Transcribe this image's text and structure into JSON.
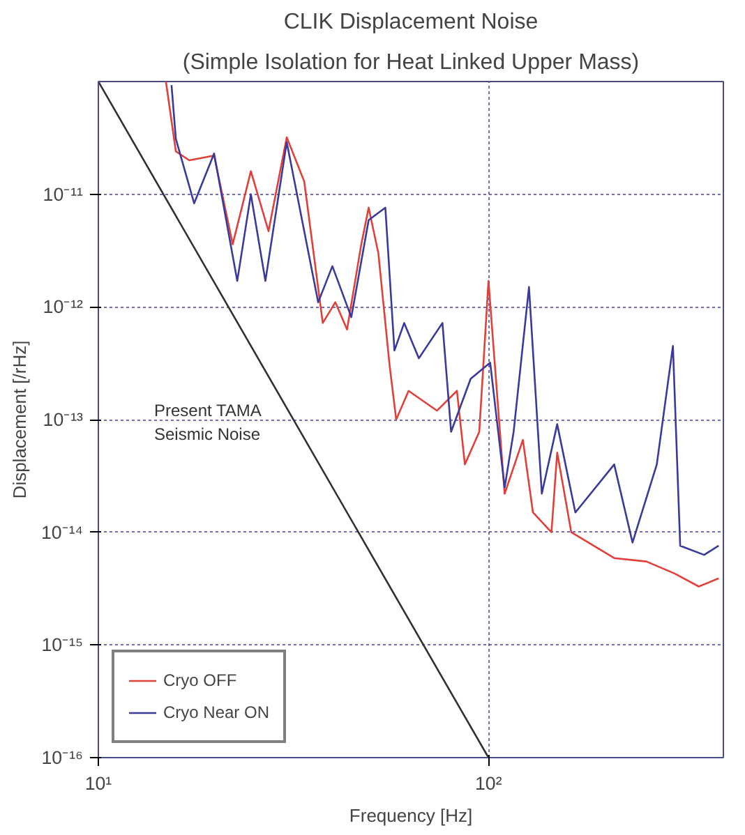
{
  "chart_data": {
    "type": "line",
    "title": "CLIK Displacement Noise",
    "subtitle": "(Simple Isolation for Heat Linked Upper Mass)",
    "xlabel": "Frequency [Hz]",
    "ylabel": "Displacement [/rHz]",
    "log": "xy",
    "grid": true,
    "legend": "bottom left",
    "line_style": "solid",
    "xlim": [
      10,
      400
    ],
    "xticks": [
      {
        "value": 10,
        "label": "10¹"
      },
      {
        "value": 100,
        "label": "10²"
      }
    ],
    "ylim": [
      1e-16,
      1e-10
    ],
    "yticks": [
      {
        "value": 1e-16,
        "label": "10⁻¹⁶"
      },
      {
        "value": 1e-15,
        "label": "10⁻¹⁵"
      },
      {
        "value": 1e-14,
        "label": "10⁻¹⁴"
      },
      {
        "value": 1e-13,
        "label": "10⁻¹³"
      },
      {
        "value": 1e-12,
        "label": "10⁻¹²"
      },
      {
        "value": 1e-11,
        "label": "10⁻¹¹"
      }
    ],
    "annotations": [
      "Present TAMA\nSeismic Noise"
    ],
    "series": [
      {
        "name": "Cryo OFF",
        "color": "#e0403a",
        "x": [
          14.9,
          15.8,
          17.1,
          19.8,
          22.1,
          24.6,
          27.3,
          30.4,
          33.7,
          37.6,
          40.5,
          43.4,
          47.2,
          49.3,
          52.2,
          55.8,
          58,
          62.4,
          73.8,
          83,
          87,
          94.7,
          100,
          110,
          122.5,
          130,
          145,
          150,
          163,
          210,
          254,
          300,
          346,
          389
        ],
        "values": [
          1e-10,
          2.4e-11,
          2e-11,
          2.2e-11,
          3.6e-12,
          1.6e-11,
          4.7e-12,
          3.2e-11,
          1.3e-11,
          7.2e-13,
          1.1e-12,
          6.3e-13,
          3.6e-12,
          7.6e-12,
          3e-12,
          3e-13,
          1e-13,
          1.8e-13,
          1.2e-13,
          1.8e-13,
          4e-14,
          7.8e-14,
          1.7e-12,
          2.2e-14,
          6.6e-14,
          1.5e-14,
          1e-14,
          5.1e-14,
          1e-14,
          5.9e-15,
          5.5e-15,
          4.3e-15,
          3.3e-15,
          3.9e-15
        ]
      },
      {
        "name": "Cryo Near ON",
        "color": "#3a3a9a",
        "x": [
          15.4,
          15.8,
          17.6,
          19.8,
          22.7,
          24.6,
          26.8,
          30.4,
          36.6,
          39.8,
          44.5,
          49.3,
          54.4,
          57.4,
          60.8,
          66.3,
          76.2,
          80.2,
          90,
          101,
          110,
          116,
          127,
          137,
          150,
          167,
          210,
          234,
          270,
          297,
          310,
          357,
          389
        ],
        "values": [
          9.3e-11,
          3.1e-11,
          8.3e-12,
          2.3e-11,
          1.7e-12,
          1e-11,
          1.7e-12,
          2.9e-11,
          1.1e-12,
          2.3e-12,
          8.1e-13,
          5.9e-12,
          7.6e-12,
          4.1e-13,
          7.2e-13,
          3.5e-13,
          7.2e-13,
          7.8e-14,
          2.3e-13,
          3.2e-13,
          2.5e-14,
          7.8e-14,
          1.5e-12,
          2.2e-14,
          9.1e-14,
          1.5e-14,
          4e-14,
          8.1e-15,
          4e-14,
          4.5e-13,
          7.6e-15,
          6.3e-15,
          7.6e-15
        ]
      },
      {
        "color": "#303030",
        "x": [
          10,
          100
        ],
        "values": [
          1e-10,
          1e-16
        ]
      }
    ]
  }
}
